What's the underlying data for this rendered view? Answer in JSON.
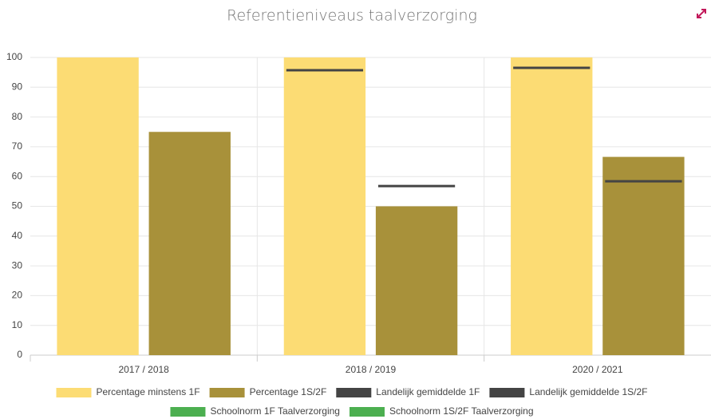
{
  "chart_data": {
    "type": "bar",
    "title": "Referentieniveaus taalverzorging",
    "categories": [
      "2017 / 2018",
      "2018 / 2019",
      "2020 / 2021"
    ],
    "series": [
      {
        "name": "Percentage minstens 1F",
        "type": "bar",
        "color": "#fcdc74",
        "values": [
          100,
          100,
          100
        ]
      },
      {
        "name": "Percentage 1S/2F",
        "type": "bar",
        "color": "#a8913a",
        "values": [
          75,
          50,
          66.6
        ]
      },
      {
        "name": "Landelijk gemiddelde 1F",
        "type": "marker",
        "color": "#444444",
        "values": [
          null,
          95.7,
          96.5
        ]
      },
      {
        "name": "Landelijk gemiddelde 1S/2F",
        "type": "marker",
        "color": "#444444",
        "values": [
          null,
          56.8,
          58.4
        ]
      },
      {
        "name": "Schoolnorm 1F Taalverzorging",
        "type": "marker",
        "color": "#4caf50",
        "values": [
          null,
          null,
          null
        ]
      },
      {
        "name": "Schoolnorm 1S/2F Taalverzorging",
        "type": "marker",
        "color": "#4caf50",
        "values": [
          null,
          null,
          null
        ]
      }
    ],
    "ylim": [
      0,
      100
    ],
    "yticks": [
      0,
      10,
      20,
      30,
      40,
      50,
      60,
      70,
      80,
      90,
      100
    ],
    "grid": true
  }
}
